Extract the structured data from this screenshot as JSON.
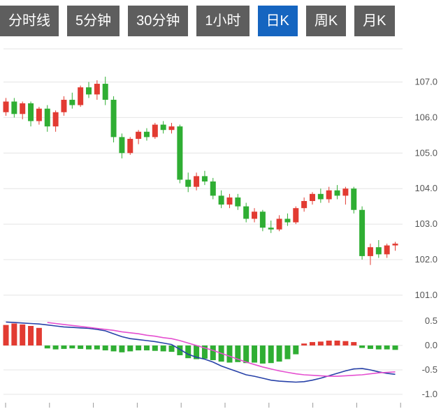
{
  "tabs": [
    {
      "id": "time-line",
      "label": "分时线",
      "active": false
    },
    {
      "id": "5min",
      "label": "5分钟",
      "active": false
    },
    {
      "id": "30min",
      "label": "30分钟",
      "active": false
    },
    {
      "id": "1hour",
      "label": "1小时",
      "active": false
    },
    {
      "id": "daily-k",
      "label": "日K",
      "active": true
    },
    {
      "id": "weekly-k",
      "label": "周K",
      "active": false
    },
    {
      "id": "monthly-k",
      "label": "月K",
      "active": false
    }
  ],
  "colors": {
    "up": "#e23b32",
    "down": "#2fae33",
    "dif_line": "#2741a8",
    "dea_line": "#e54fd0",
    "grid": "#e4e4e4",
    "axis_text": "#555555",
    "tick": "#999999",
    "tab_bg": "#5e5e5e",
    "tab_active_bg": "#1565c0",
    "tab_text": "#ffffff"
  },
  "chart_data": {
    "type": "candlestick",
    "title": "",
    "legend_position": "none",
    "grid": true,
    "panels": {
      "price": {
        "axis_side": "right",
        "axis_ticks": [
          "107.0",
          "106.0",
          "105.0",
          "104.0",
          "103.0",
          "102.0",
          "101.0"
        ],
        "tick_values": [
          107.0,
          106.0,
          105.0,
          104.0,
          103.0,
          102.0,
          101.0
        ],
        "ylim": [
          100.6,
          107.9
        ],
        "candles_format": [
          "open",
          "high",
          "low",
          "close"
        ],
        "candles": [
          [
            106.15,
            106.55,
            106.05,
            106.45
          ],
          [
            106.45,
            106.55,
            106.0,
            106.1
          ],
          [
            106.1,
            106.45,
            105.95,
            106.4
          ],
          [
            106.4,
            106.45,
            105.75,
            105.9
          ],
          [
            105.9,
            106.3,
            105.8,
            106.25
          ],
          [
            106.25,
            106.35,
            105.6,
            105.75
          ],
          [
            105.75,
            106.2,
            105.6,
            106.15
          ],
          [
            106.15,
            106.6,
            106.05,
            106.5
          ],
          [
            106.5,
            106.7,
            106.25,
            106.35
          ],
          [
            106.35,
            106.9,
            106.3,
            106.85
          ],
          [
            106.85,
            107.0,
            106.55,
            106.65
          ],
          [
            106.65,
            107.05,
            106.5,
            106.95
          ],
          [
            106.95,
            107.15,
            106.35,
            106.5
          ],
          [
            106.5,
            106.6,
            105.3,
            105.45
          ],
          [
            105.45,
            105.55,
            104.85,
            105.0
          ],
          [
            105.0,
            105.45,
            104.95,
            105.4
          ],
          [
            105.4,
            105.65,
            105.25,
            105.6
          ],
          [
            105.6,
            105.7,
            105.35,
            105.45
          ],
          [
            105.45,
            105.85,
            105.4,
            105.8
          ],
          [
            105.8,
            105.9,
            105.55,
            105.65
          ],
          [
            105.65,
            105.85,
            105.55,
            105.75
          ],
          [
            105.75,
            105.8,
            104.15,
            104.25
          ],
          [
            104.25,
            104.45,
            103.9,
            104.05
          ],
          [
            104.05,
            104.45,
            103.95,
            104.35
          ],
          [
            104.35,
            104.5,
            104.1,
            104.2
          ],
          [
            104.2,
            104.3,
            103.7,
            103.8
          ],
          [
            103.8,
            103.95,
            103.45,
            103.55
          ],
          [
            103.55,
            103.85,
            103.45,
            103.75
          ],
          [
            103.75,
            103.85,
            103.4,
            103.5
          ],
          [
            103.5,
            103.6,
            103.05,
            103.15
          ],
          [
            103.15,
            103.45,
            103.05,
            103.35
          ],
          [
            103.35,
            103.4,
            102.8,
            102.9
          ],
          [
            102.9,
            103.1,
            102.75,
            102.85
          ],
          [
            102.85,
            103.25,
            102.8,
            103.15
          ],
          [
            103.15,
            103.3,
            102.95,
            103.05
          ],
          [
            103.05,
            103.5,
            103.0,
            103.45
          ],
          [
            103.45,
            103.75,
            103.35,
            103.65
          ],
          [
            103.65,
            103.9,
            103.55,
            103.85
          ],
          [
            103.85,
            104.0,
            103.6,
            103.7
          ],
          [
            103.7,
            104.05,
            103.6,
            103.95
          ],
          [
            103.95,
            104.1,
            103.7,
            103.8
          ],
          [
            103.8,
            104.05,
            103.55,
            104.0
          ],
          [
            104.0,
            104.05,
            103.3,
            103.4
          ],
          [
            103.4,
            103.5,
            102.0,
            102.1
          ],
          [
            102.1,
            102.45,
            101.85,
            102.35
          ],
          [
            102.35,
            102.55,
            102.05,
            102.15
          ],
          [
            102.15,
            102.45,
            102.05,
            102.4
          ],
          [
            102.4,
            102.5,
            102.25,
            102.45
          ]
        ]
      },
      "macd": {
        "axis_side": "right",
        "axis_ticks": [
          "0.5",
          "0.0",
          "-0.5",
          "-1.0"
        ],
        "tick_values": [
          0.5,
          0.0,
          -0.5,
          -1.0
        ],
        "ylim": [
          -1.15,
          0.65
        ],
        "histogram": [
          0.42,
          0.45,
          0.43,
          0.4,
          0.36,
          -0.06,
          -0.08,
          -0.07,
          -0.06,
          -0.07,
          -0.08,
          -0.08,
          -0.1,
          -0.12,
          -0.14,
          -0.12,
          -0.1,
          -0.1,
          -0.11,
          -0.12,
          -0.13,
          -0.2,
          -0.26,
          -0.28,
          -0.27,
          -0.3,
          -0.33,
          -0.35,
          -0.34,
          -0.36,
          -0.35,
          -0.37,
          -0.36,
          -0.33,
          -0.28,
          -0.18,
          0.04,
          0.07,
          0.08,
          0.1,
          0.1,
          0.09,
          0.07,
          -0.05,
          -0.07,
          -0.08,
          -0.08,
          -0.09
        ],
        "dif": [
          0.48,
          0.47,
          0.46,
          0.45,
          0.44,
          0.42,
          0.4,
          0.38,
          0.37,
          0.36,
          0.35,
          0.33,
          0.3,
          0.24,
          0.18,
          0.14,
          0.12,
          0.1,
          0.08,
          0.05,
          0.02,
          -0.08,
          -0.18,
          -0.24,
          -0.28,
          -0.34,
          -0.42,
          -0.48,
          -0.54,
          -0.6,
          -0.63,
          -0.67,
          -0.71,
          -0.73,
          -0.74,
          -0.75,
          -0.74,
          -0.71,
          -0.67,
          -0.62,
          -0.57,
          -0.52,
          -0.48,
          -0.47,
          -0.5,
          -0.54,
          -0.57,
          -0.59
        ],
        "dea": [
          null,
          null,
          null,
          null,
          null,
          0.47,
          0.45,
          0.43,
          0.41,
          0.39,
          0.37,
          0.35,
          0.33,
          0.31,
          0.28,
          0.26,
          0.24,
          0.21,
          0.19,
          0.16,
          0.14,
          0.1,
          0.05,
          0.0,
          -0.05,
          -0.1,
          -0.16,
          -0.22,
          -0.28,
          -0.34,
          -0.39,
          -0.44,
          -0.48,
          -0.52,
          -0.55,
          -0.58,
          -0.6,
          -0.61,
          -0.62,
          -0.63,
          -0.63,
          -0.62,
          -0.61,
          -0.6,
          -0.58,
          -0.56,
          -0.55,
          -0.54
        ]
      }
    }
  }
}
